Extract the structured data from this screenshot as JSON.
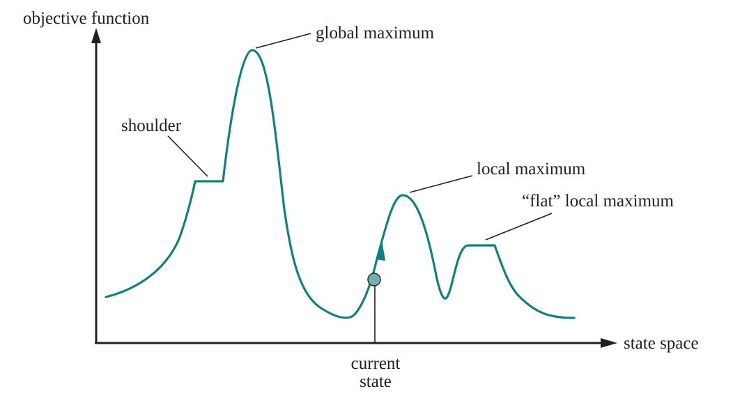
{
  "axes": {
    "y_label": "objective function",
    "x_label": "state space"
  },
  "annotations": {
    "global_maximum": "global maximum",
    "shoulder": "shoulder",
    "local_maximum": "local maximum",
    "flat_local_maximum": "“flat” local maximum",
    "current_state_line1": "current",
    "current_state_line2": "state"
  },
  "colors": {
    "curve": "#128080",
    "marker_fill": "#6fb2b0",
    "axis": "#231f20",
    "text": "#231f20"
  }
}
